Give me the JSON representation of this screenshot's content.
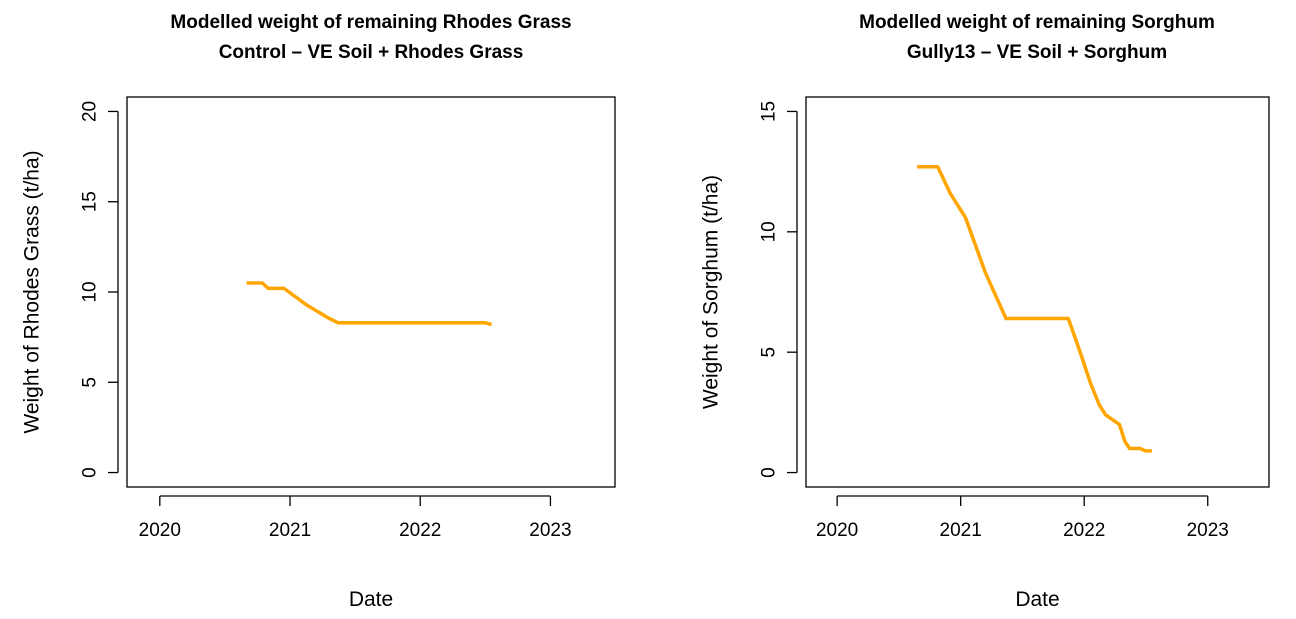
{
  "chart_data": [
    {
      "type": "line",
      "title": "Modelled weight of remaining Rhodes Grass",
      "subtitle": "Control – VE Soil + Rhodes Grass",
      "xlabel": "Date",
      "ylabel": "Weight of Rhodes Grass (t/ha)",
      "xlim": [
        "2019-10-01",
        "2023-07-01"
      ],
      "ylim": [
        -0.8,
        20.8
      ],
      "x_ticks": [
        "2020",
        "2021",
        "2022",
        "2023"
      ],
      "y_ticks": [
        "0",
        "5",
        "10",
        "15",
        "20"
      ],
      "grid": false,
      "series": [
        {
          "color": "#FFA500",
          "x": [
            "2020-09-01",
            "2020-10-15",
            "2020-11-01",
            "2020-12-15",
            "2021-02-15",
            "2021-04-15",
            "2021-05-15",
            "2021-12-15",
            "2022-07-01",
            "2022-07-20"
          ],
          "y": [
            10.5,
            10.5,
            10.2,
            10.2,
            9.3,
            8.6,
            8.3,
            8.3,
            8.3,
            8.2
          ]
        }
      ]
    },
    {
      "type": "line",
      "title": "Modelled weight of remaining Sorghum",
      "subtitle": "Gully13 – VE Soil + Sorghum",
      "xlabel": "Date",
      "ylabel": "Weight of Sorghum (t/ha)",
      "xlim": [
        "2019-10-01",
        "2023-07-01"
      ],
      "ylim": [
        -0.6,
        15.6
      ],
      "x_ticks": [
        "2020",
        "2021",
        "2022",
        "2023"
      ],
      "y_ticks": [
        "0",
        "5",
        "10",
        "15"
      ],
      "grid": false,
      "series": [
        {
          "color": "#FFA500",
          "x": [
            "2020-08-25",
            "2020-10-25",
            "2020-12-01",
            "2021-01-15",
            "2021-03-15",
            "2021-05-15",
            "2021-11-15",
            "2021-12-05",
            "2021-12-25",
            "2022-01-20",
            "2022-02-15",
            "2022-03-05",
            "2022-03-25",
            "2022-04-15",
            "2022-05-01",
            "2022-05-15",
            "2022-06-15",
            "2022-07-01",
            "2022-07-20"
          ],
          "y": [
            12.7,
            12.7,
            11.6,
            10.6,
            8.3,
            6.4,
            6.4,
            5.6,
            4.8,
            3.7,
            2.8,
            2.4,
            2.2,
            2.0,
            1.3,
            1.0,
            1.0,
            0.9,
            0.9
          ]
        }
      ]
    }
  ]
}
